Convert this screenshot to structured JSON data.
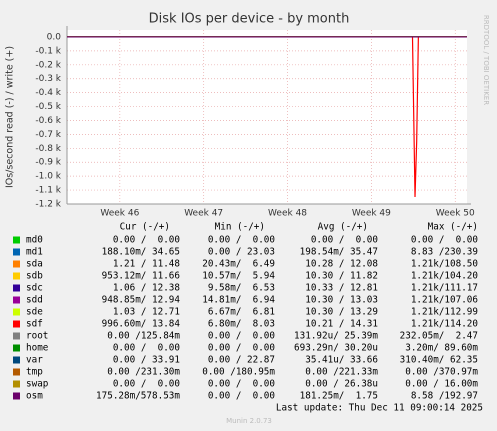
{
  "chart_data": {
    "type": "line",
    "title": "Disk IOs per device - by month",
    "y_label": "IOs/second read (-) / write (+)",
    "side_text": "RRDTOOL / TOBI OETIKER",
    "xlim": [
      45.37,
      50.14
    ],
    "xticks": [
      {
        "value": 46,
        "label": "Week 46"
      },
      {
        "value": 47,
        "label": "Week 47"
      },
      {
        "value": 48,
        "label": "Week 48"
      },
      {
        "value": 49,
        "label": "Week 49"
      },
      {
        "value": 50,
        "label": "Week 50"
      }
    ],
    "ylim": [
      -1200,
      50
    ],
    "yticks": [
      {
        "value": 0,
        "label": "0.0"
      },
      {
        "value": -100,
        "label": "-0.1 k"
      },
      {
        "value": -200,
        "label": "-0.2 k"
      },
      {
        "value": -300,
        "label": "-0.3 k"
      },
      {
        "value": -400,
        "label": "-0.4 k"
      },
      {
        "value": -500,
        "label": "-0.5 k"
      },
      {
        "value": -600,
        "label": "-0.6 k"
      },
      {
        "value": -700,
        "label": "-0.7 k"
      },
      {
        "value": -800,
        "label": "-0.8 k"
      },
      {
        "value": -900,
        "label": "-0.9 k"
      },
      {
        "value": -1000,
        "label": "-1.0 k"
      },
      {
        "value": -1100,
        "label": "-1.1 k"
      },
      {
        "value": -1200,
        "label": "-1.2 k"
      }
    ],
    "grid": true,
    "x": [
      45.37,
      49.49,
      49.52,
      49.54,
      49.56,
      50.14
    ],
    "stat_headers": [
      "Cur (-/+)",
      "Min (-/+)",
      "Avg (-/+)",
      "Max (-/+)"
    ],
    "series": [
      {
        "name": "md0",
        "color": "#00cc00",
        "values": [
          0,
          0,
          0,
          0,
          0,
          0
        ],
        "stats": [
          "0.00 /  0.00",
          "0.00 /  0.00",
          "0.00 /  0.00",
          "0.00 /  0.00"
        ]
      },
      {
        "name": "md1",
        "color": "#0066b3",
        "values": [
          0,
          0,
          0,
          0,
          0,
          0
        ],
        "stats": [
          "188.10m/ 34.65",
          "0.00 / 23.03",
          "198.54m/ 35.47",
          "8.83 /230.39"
        ]
      },
      {
        "name": "sda",
        "color": "#ff8000",
        "values": [
          0,
          0,
          0,
          0,
          0,
          0
        ],
        "stats": [
          "1.21 / 11.48",
          "20.43m/  6.49",
          "10.28 / 12.08",
          "1.21k/108.50"
        ]
      },
      {
        "name": "sdb",
        "color": "#ffcc00",
        "values": [
          0,
          0,
          0,
          0,
          0,
          0
        ],
        "stats": [
          "953.12m/ 11.66",
          "10.57m/  5.94",
          "10.30 / 11.82",
          "1.21k/104.20"
        ]
      },
      {
        "name": "sdc",
        "color": "#330099",
        "values": [
          0,
          0,
          0,
          0,
          0,
          0
        ],
        "stats": [
          "1.06 / 12.38",
          "9.58m/  6.53",
          "10.33 / 12.81",
          "1.21k/111.17"
        ]
      },
      {
        "name": "sdd",
        "color": "#990099",
        "values": [
          0,
          0,
          0,
          0,
          0,
          0
        ],
        "stats": [
          "948.85m/ 12.94",
          "14.81m/  6.94",
          "10.30 / 13.03",
          "1.21k/107.06"
        ]
      },
      {
        "name": "sde",
        "color": "#ccff00",
        "values": [
          0,
          0,
          0,
          0,
          0,
          0
        ],
        "stats": [
          "1.03 / 12.71",
          "6.67m/  6.81",
          "10.30 / 13.29",
          "1.21k/112.99"
        ]
      },
      {
        "name": "sdf",
        "color": "#ff0000",
        "values": [
          0,
          0,
          -1150,
          -750,
          0,
          0
        ],
        "stats": [
          "996.60m/ 13.84",
          "6.80m/  8.03",
          "10.21 / 14.31",
          "1.21k/114.20"
        ]
      },
      {
        "name": "root",
        "color": "#808080",
        "values": [
          0,
          0,
          0,
          0,
          0,
          0
        ],
        "stats": [
          "0.00 /125.84m",
          "0.00 /  0.00",
          "131.92u/ 25.39m",
          "232.05m/  2.47"
        ]
      },
      {
        "name": "home",
        "color": "#008f00",
        "values": [
          0,
          0,
          0,
          0,
          0,
          0
        ],
        "stats": [
          "0.00 /  0.00",
          "0.00 /  0.00",
          "693.29n/ 30.20u",
          "3.20m/ 89.60m"
        ]
      },
      {
        "name": "var",
        "color": "#00487d",
        "values": [
          0,
          0,
          0,
          0,
          0,
          0
        ],
        "stats": [
          "0.00 / 33.91",
          "0.00 / 22.87",
          "35.41u/ 33.66",
          "310.40m/ 62.35"
        ]
      },
      {
        "name": "tmp",
        "color": "#b35a00",
        "values": [
          0,
          0,
          0,
          0,
          0,
          0
        ],
        "stats": [
          "0.00 /231.30m",
          "0.00 /180.95m",
          "0.00 /221.33m",
          "0.00 /370.97m"
        ]
      },
      {
        "name": "swap",
        "color": "#b38f00",
        "values": [
          0,
          0,
          0,
          0,
          0,
          0
        ],
        "stats": [
          "0.00 /  0.00",
          "0.00 /  0.00",
          "0.00 / 26.38u",
          "0.00 / 16.00m"
        ]
      },
      {
        "name": "osm",
        "color": "#6b006b",
        "values": [
          0,
          0,
          0,
          0,
          0,
          0
        ],
        "stats": [
          "175.28m/578.53m",
          "0.00 /  0.00",
          "181.25m/  1.75",
          "8.58 /192.97"
        ]
      }
    ],
    "last_update": "Last update: Thu Dec 11 09:00:14 2025",
    "footer": "Munin 2.0.73"
  }
}
